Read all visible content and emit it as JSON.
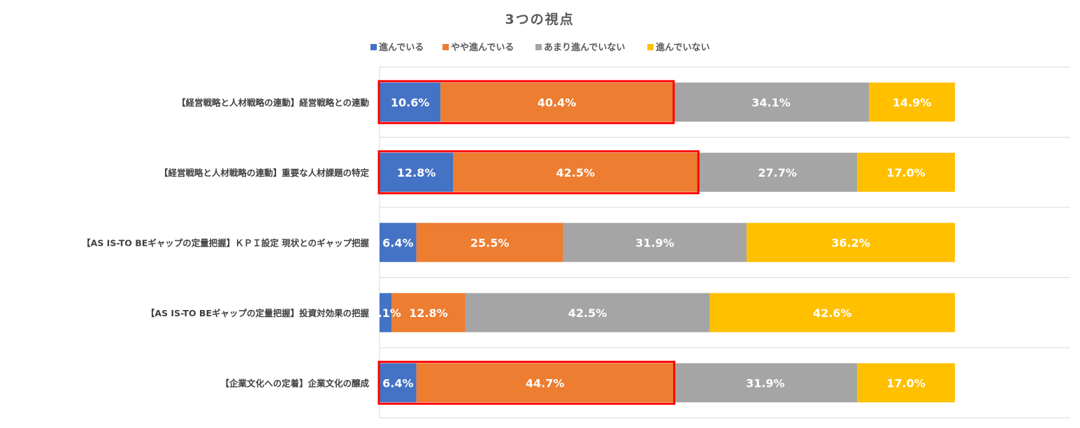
{
  "chart_data": {
    "type": "bar",
    "orientation": "horizontal",
    "stacked": "100%",
    "title": "3つの視点",
    "legend_position": "top",
    "categories": [
      "【経営戦略と人材戦略の連動】経営戦略との連動",
      "【経営戦略と人材戦略の連動】重要な人材課題の特定",
      "【AS IS-TO BEギャップの定量把握】ＫＰＩ設定 現状とのギャップ把握",
      "【AS IS-TO BEギャップの定量把握】投資対効果の把握",
      "【企業文化への定着】企業文化の醸成"
    ],
    "series": [
      {
        "name": "進んでいる",
        "color": "#4472C4",
        "values": [
          10.6,
          12.8,
          6.4,
          2.1,
          6.4
        ],
        "labels": [
          "10.6%",
          "12.8%",
          "6.4%",
          "2.1%",
          "6.4%"
        ]
      },
      {
        "name": "やや進んでいる",
        "color": "#ED7D31",
        "values": [
          40.4,
          42.5,
          25.5,
          12.8,
          44.7
        ],
        "labels": [
          "40.4%",
          "42.5%",
          "25.5%",
          "12.8%",
          "44.7%"
        ]
      },
      {
        "name": "あまり進んでいない",
        "color": "#A5A5A5",
        "values": [
          34.1,
          27.7,
          31.9,
          42.5,
          31.9
        ],
        "labels": [
          "34.1%",
          "27.7%",
          "31.9%",
          "42.5%",
          "31.9%"
        ]
      },
      {
        "name": "進んでいない",
        "color": "#FFC000",
        "values": [
          14.9,
          17.0,
          36.2,
          42.6,
          17.0
        ],
        "labels": [
          "14.9%",
          "17.0%",
          "36.2%",
          "42.6%",
          "17.0%"
        ]
      }
    ],
    "highlighted_rows": [
      0,
      1,
      4
    ],
    "highlight_color": "#FF0000",
    "grid": true
  }
}
